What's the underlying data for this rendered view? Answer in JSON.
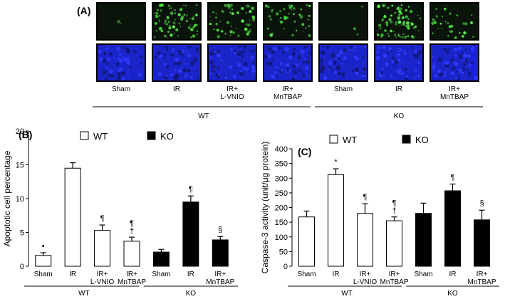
{
  "panel_a": {
    "label": "(A)",
    "columns": [
      "Sham",
      "IR",
      "IR+\nL-VNIO",
      "IR+\nMnTBAP",
      "Sham",
      "IR",
      "IR+\nMnTBAP"
    ],
    "green_intensity": [
      0.02,
      0.9,
      0.55,
      0.5,
      0.03,
      0.9,
      0.35
    ],
    "groups": [
      "WT",
      "KO"
    ]
  },
  "chart_data": [
    {
      "type": "bar",
      "panel": "(B)",
      "ylabel": "Apoptotic cell percentage",
      "xlabel": "",
      "ylim": [
        0,
        20
      ],
      "yticks": [
        0,
        5,
        10,
        15,
        20
      ],
      "categories": [
        "Sham",
        "IR",
        "IR+\nL-VNIO",
        "IR+\nMnTBAP",
        "Sham",
        "IR",
        "IR+\nMnTBAP"
      ],
      "group_labels": [
        "WT",
        "KO"
      ],
      "legend": [
        "WT",
        "KO"
      ],
      "series": [
        {
          "name": "WT",
          "color": "#ffffff",
          "values": [
            1.6,
            14.5,
            5.3,
            3.7,
            null,
            null,
            null
          ],
          "errors": [
            0.4,
            0.8,
            0.8,
            0.6,
            null,
            null,
            null
          ]
        },
        {
          "name": "KO",
          "color": "#000000",
          "values": [
            null,
            null,
            null,
            null,
            2.1,
            9.5,
            3.9
          ],
          "errors": [
            null,
            null,
            null,
            null,
            0.4,
            0.9,
            0.5
          ]
        }
      ],
      "annotations": [
        "•",
        "",
        "¶",
        "¶\n†",
        "",
        "¶",
        "§"
      ]
    },
    {
      "type": "bar",
      "panel": "(C)",
      "ylabel": "Caspase-3 activity (unit/μg protein)",
      "xlabel": "",
      "ylim": [
        0,
        400
      ],
      "yticks": [
        0,
        50,
        100,
        150,
        200,
        250,
        300,
        350,
        400
      ],
      "categories": [
        "Sham",
        "IR",
        "IR+\nL-VNIO",
        "IR+\nMnTBAP",
        "Sham",
        "IR",
        "IR+\nMnTBAP"
      ],
      "group_labels": [
        "WT",
        "KO"
      ],
      "legend": [
        "WT",
        "KO"
      ],
      "series": [
        {
          "name": "WT",
          "color": "#ffffff",
          "values": [
            168,
            312,
            180,
            155,
            null,
            null,
            null
          ],
          "errors": [
            20,
            20,
            33,
            13,
            null,
            null,
            null
          ]
        },
        {
          "name": "KO",
          "color": "#000000",
          "values": [
            null,
            null,
            null,
            null,
            180,
            257,
            158
          ],
          "errors": [
            null,
            null,
            null,
            null,
            35,
            23,
            33
          ]
        }
      ],
      "annotations": [
        "",
        "*",
        "¶",
        "¶\n†",
        "",
        "¶",
        "§"
      ]
    }
  ]
}
